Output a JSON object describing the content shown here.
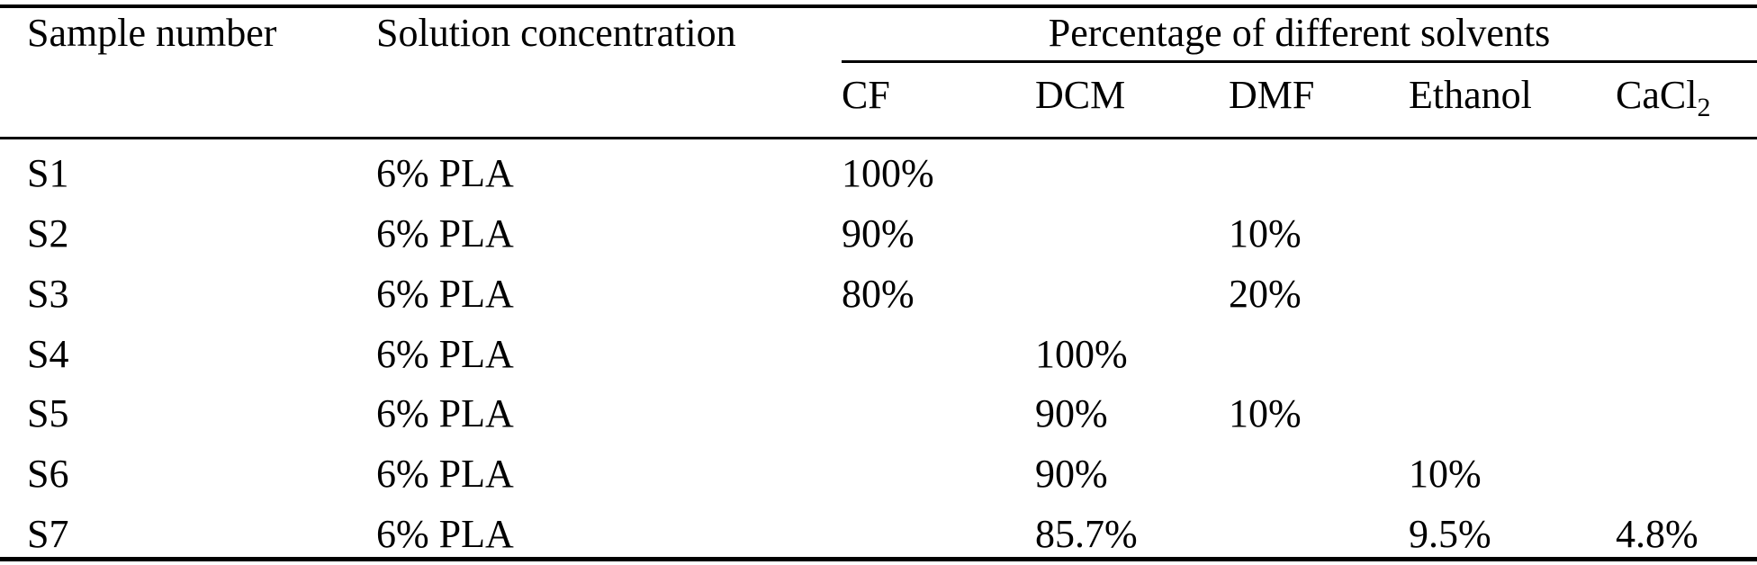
{
  "page": {
    "background_color": "#ffffff",
    "text_color": "#000000",
    "rule_color": "#000000"
  },
  "table": {
    "header": {
      "sample_number": "Sample number",
      "solution_concentration": "Solution concentration",
      "solvents_group_title": "Percentage of different solvents",
      "solvent_columns": {
        "cf": "CF",
        "dcm": "DCM",
        "dmf": "DMF",
        "ethanol": "Ethanol",
        "cacl2_base": "CaCl",
        "cacl2_sub": "2"
      }
    },
    "rows": [
      {
        "sample": "S1",
        "concentration": "6% PLA",
        "cf": "100%",
        "dcm": "",
        "dmf": "",
        "ethanol": "",
        "cacl2": ""
      },
      {
        "sample": "S2",
        "concentration": "6% PLA",
        "cf": "90%",
        "dcm": "",
        "dmf": "10%",
        "ethanol": "",
        "cacl2": ""
      },
      {
        "sample": "S3",
        "concentration": "6% PLA",
        "cf": "80%",
        "dcm": "",
        "dmf": "20%",
        "ethanol": "",
        "cacl2": ""
      },
      {
        "sample": "S4",
        "concentration": "6% PLA",
        "cf": "",
        "dcm": "100%",
        "dmf": "",
        "ethanol": "",
        "cacl2": ""
      },
      {
        "sample": "S5",
        "concentration": "6% PLA",
        "cf": "",
        "dcm": "90%",
        "dmf": "10%",
        "ethanol": "",
        "cacl2": ""
      },
      {
        "sample": "S6",
        "concentration": "6% PLA",
        "cf": "",
        "dcm": "90%",
        "dmf": "",
        "ethanol": "10%",
        "cacl2": ""
      },
      {
        "sample": "S7",
        "concentration": "6% PLA",
        "cf": "",
        "dcm": "85.7%",
        "dmf": "",
        "ethanol": "9.5%",
        "cacl2": "4.8%"
      }
    ]
  }
}
